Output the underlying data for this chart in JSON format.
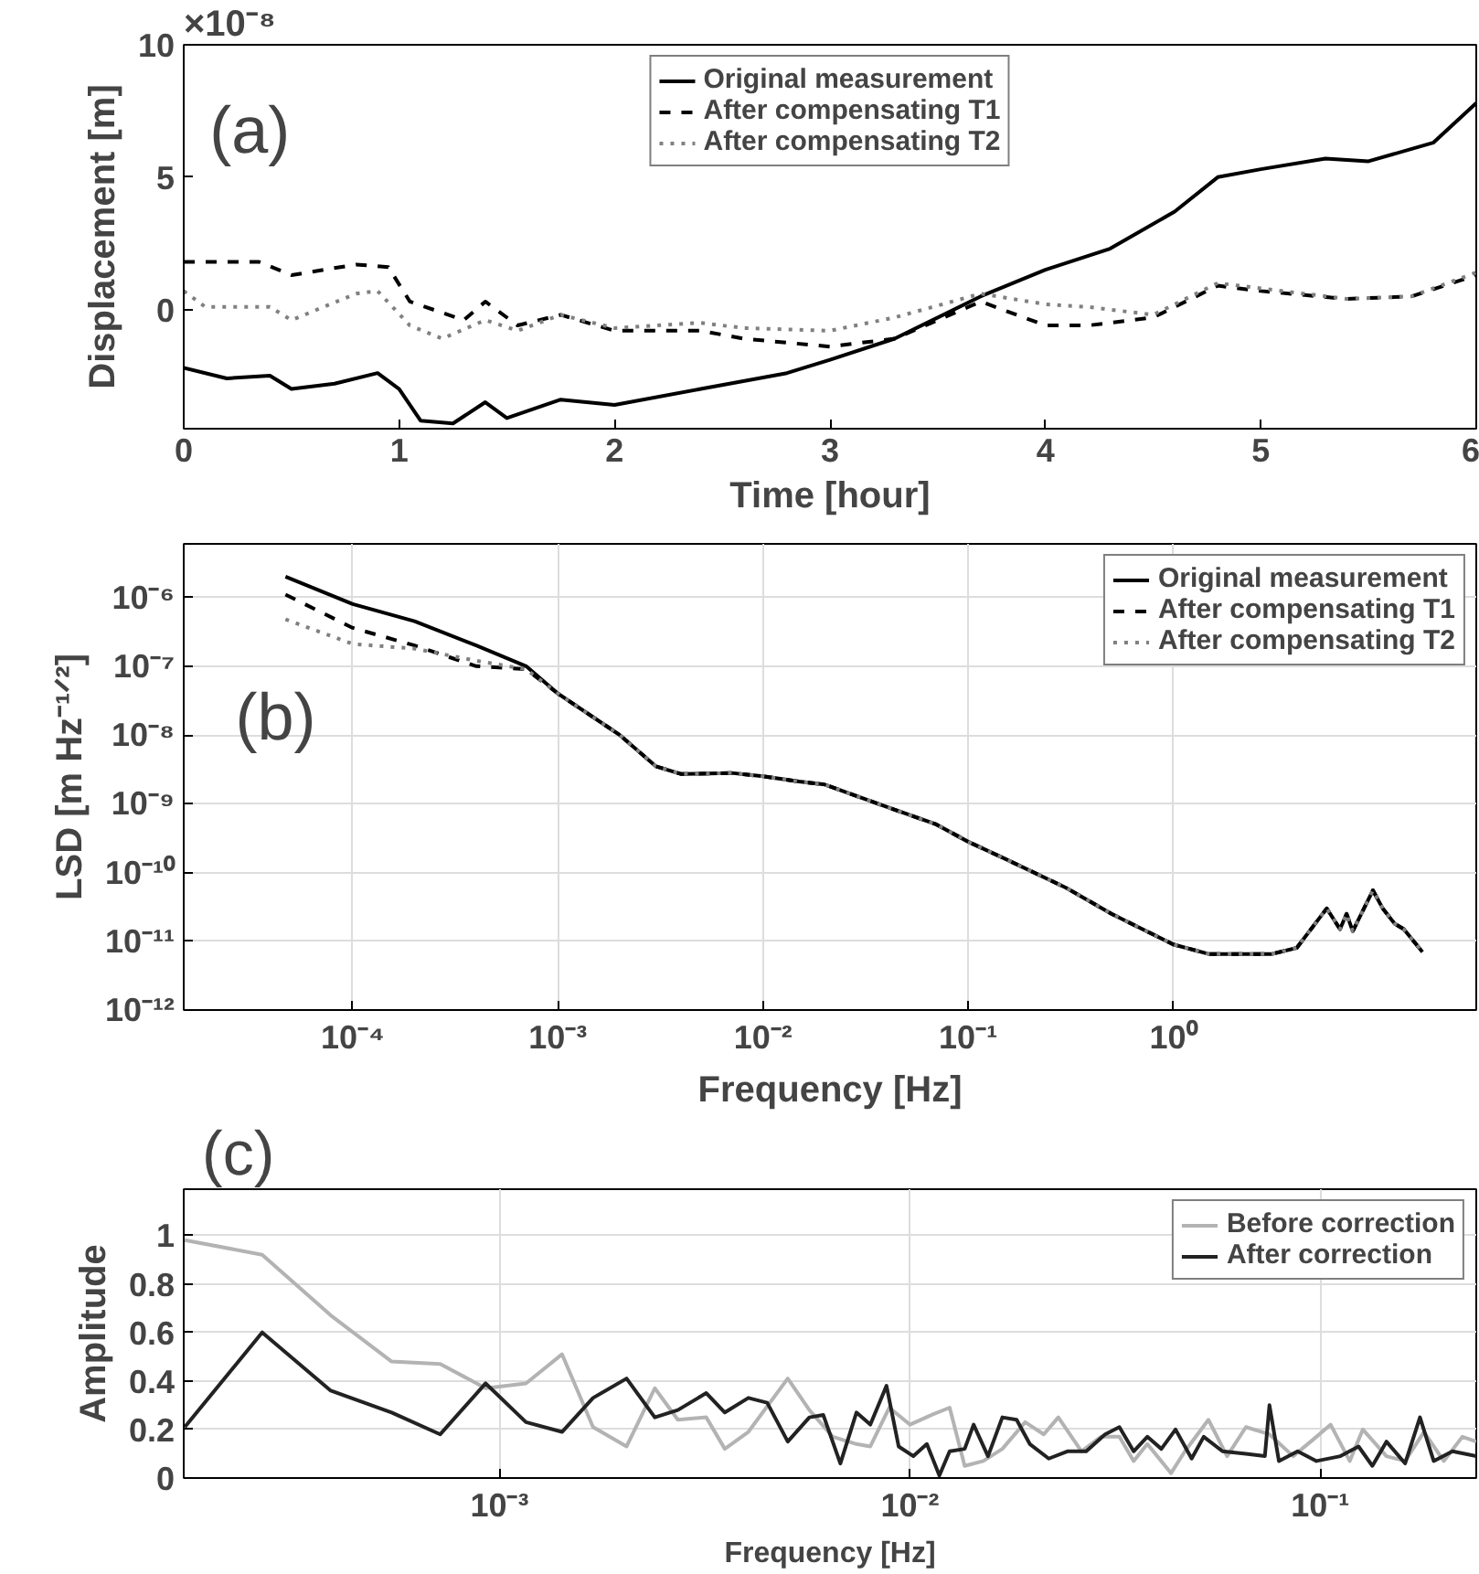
{
  "chart_data": [
    {
      "type": "line",
      "xlabel": "Time [hour]",
      "ylabel": "Displacement [m]",
      "xlim": [
        0,
        6
      ],
      "ylim": [
        -4.5,
        10
      ],
      "xticks": [
        0,
        1,
        2,
        3,
        4,
        5,
        6
      ],
      "yticks": [
        0,
        5,
        10
      ],
      "grid": false,
      "legend": "top",
      "annotations": [
        "(a)",
        "×10⁻⁸"
      ],
      "series": [
        {
          "name": "Original measurement",
          "color": "#000000",
          "line_style": "solid",
          "x": [
            0,
            0.2,
            0.4,
            0.5,
            0.7,
            0.9,
            1.0,
            1.1,
            1.25,
            1.4,
            1.5,
            1.75,
            2.0,
            2.4,
            2.8,
            3.0,
            3.3,
            3.7,
            4.0,
            4.3,
            4.6,
            4.8,
            5.0,
            5.3,
            5.5,
            5.8,
            6.0
          ],
          "values": [
            -2.2,
            -2.6,
            -2.5,
            -3.0,
            -2.8,
            -2.4,
            -3.0,
            -4.2,
            -4.3,
            -3.5,
            -4.1,
            -3.4,
            -3.6,
            -3.0,
            -2.4,
            -1.9,
            -1.1,
            0.5,
            1.5,
            2.3,
            3.7,
            5.0,
            5.3,
            5.7,
            5.6,
            6.3,
            7.8
          ]
        },
        {
          "name": "After compensating T1",
          "color": "#000000",
          "line_style": "dashed",
          "x": [
            0,
            0.35,
            0.5,
            0.8,
            0.95,
            1.05,
            1.3,
            1.4,
            1.55,
            1.75,
            2.0,
            2.4,
            2.6,
            3.0,
            3.3,
            3.7,
            4.0,
            4.2,
            4.5,
            4.8,
            5.0,
            5.4,
            5.7,
            6.0
          ],
          "values": [
            1.8,
            1.8,
            1.3,
            1.7,
            1.6,
            0.3,
            -0.4,
            0.3,
            -0.6,
            -0.2,
            -0.8,
            -0.8,
            -1.1,
            -1.4,
            -1.1,
            0.3,
            -0.6,
            -0.6,
            -0.3,
            0.9,
            0.7,
            0.4,
            0.5,
            1.3
          ]
        },
        {
          "name": "After compensating T2",
          "color": "#808080",
          "line_style": "dotted",
          "x": [
            0,
            0.1,
            0.4,
            0.5,
            0.8,
            0.9,
            1.05,
            1.2,
            1.4,
            1.55,
            1.75,
            2.0,
            2.4,
            2.6,
            3.0,
            3.3,
            3.7,
            4.0,
            4.2,
            4.5,
            4.8,
            5.0,
            5.4,
            5.7,
            6.0
          ],
          "values": [
            0.7,
            0.1,
            0.1,
            -0.4,
            0.6,
            0.7,
            -0.6,
            -1.1,
            -0.4,
            -0.8,
            -0.2,
            -0.7,
            -0.5,
            -0.7,
            -0.8,
            -0.3,
            0.6,
            0.2,
            0.1,
            -0.2,
            1.0,
            0.8,
            0.4,
            0.5,
            1.4
          ]
        }
      ]
    },
    {
      "type": "line",
      "xlabel": "Frequency [Hz]",
      "ylabel": "LSD [m Hz⁻¹ᐟ²]",
      "log": "xy",
      "xlim": [
        1.5e-05,
        30
      ],
      "ylim": [
        1e-12,
        6e-06
      ],
      "xticks": [
        {
          "value": 0.0001,
          "label": "10⁻⁴"
        },
        {
          "value": 0.001,
          "label": "10⁻³"
        },
        {
          "value": 0.01,
          "label": "10⁻²"
        },
        {
          "value": 0.1,
          "label": "10⁻¹"
        },
        {
          "value": 1,
          "label": "10⁰"
        }
      ],
      "yticks": [
        {
          "value": 1e-12,
          "label": "10⁻¹²"
        },
        {
          "value": 1e-11,
          "label": "10⁻¹¹"
        },
        {
          "value": 1e-10,
          "label": "10⁻¹⁰"
        },
        {
          "value": 1e-09,
          "label": "10⁻⁹"
        },
        {
          "value": 1e-08,
          "label": "10⁻⁸"
        },
        {
          "value": 1e-07,
          "label": "10⁻⁷"
        },
        {
          "value": 1e-06,
          "label": "10⁻⁶"
        }
      ],
      "grid": true,
      "legend": "top right",
      "annotations": [
        "(b)"
      ],
      "series": [
        {
          "name": "Original measurement",
          "color": "#000000",
          "line_style": "solid",
          "x": [
            4.7e-05,
            0.0001,
            0.0002,
            0.0004,
            0.0007,
            0.001,
            0.002,
            0.003,
            0.004,
            0.007,
            0.01,
            0.015,
            0.02,
            0.04,
            0.07,
            0.1,
            0.15,
            0.3,
            0.5,
            1,
            1.5,
            3,
            4,
            5.6,
            6.5,
            7,
            7.5,
            9.4,
            10.5,
            12,
            13.3,
            16.4
          ],
          "values": [
            2e-06,
            8e-07,
            4.5e-07,
            2e-07,
            1e-07,
            4e-08,
            1e-08,
            3.5e-09,
            2.7e-09,
            2.8e-09,
            2.5e-09,
            2.1e-09,
            1.9e-09,
            9e-10,
            5e-10,
            2.8e-10,
            1.6e-10,
            6e-11,
            2.5e-11,
            9e-12,
            6.5e-12,
            6.5e-12,
            8e-12,
            3e-11,
            1.5e-11,
            2.5e-11,
            1.4e-11,
            5.5e-11,
            3e-11,
            1.8e-11,
            1.5e-11,
            7e-12
          ]
        },
        {
          "name": "After compensating T1",
          "color": "#000000",
          "line_style": "dashed",
          "x": [
            4.7e-05,
            0.0001,
            0.0002,
            0.0004,
            0.0007,
            0.001,
            0.002,
            0.003,
            0.004,
            0.007,
            0.01,
            0.015,
            0.02,
            0.04,
            0.07,
            0.1,
            0.15,
            0.3,
            0.5,
            1,
            1.5,
            3,
            4,
            5.6,
            6.5,
            7,
            7.5,
            9.4,
            10.5,
            12,
            13.3,
            16.4
          ],
          "values": [
            1.1e-06,
            3.6e-07,
            2e-07,
            1e-07,
            9e-08,
            4e-08,
            1e-08,
            3.5e-09,
            2.7e-09,
            2.8e-09,
            2.5e-09,
            2.1e-09,
            1.9e-09,
            9e-10,
            5e-10,
            2.8e-10,
            1.6e-10,
            6e-11,
            2.5e-11,
            9e-12,
            6.5e-12,
            6.5e-12,
            8e-12,
            3e-11,
            1.5e-11,
            2.5e-11,
            1.4e-11,
            5.5e-11,
            3e-11,
            1.8e-11,
            1.5e-11,
            7e-12
          ]
        },
        {
          "name": "After compensating T2",
          "color": "#808080",
          "line_style": "dotted",
          "x": [
            4.7e-05,
            0.0001,
            0.0002,
            0.0004,
            0.0007,
            0.001,
            0.002,
            0.003,
            0.004,
            0.007,
            0.01,
            0.015,
            0.02,
            0.04,
            0.07,
            0.1,
            0.15,
            0.3,
            0.5,
            1,
            1.5,
            3,
            4,
            5.6,
            6.5,
            7,
            7.5,
            9.4,
            10.5,
            12,
            13.3,
            16.4
          ],
          "values": [
            4.8e-07,
            2.1e-07,
            1.8e-07,
            1.2e-07,
            9e-08,
            4e-08,
            1e-08,
            3.5e-09,
            2.7e-09,
            2.8e-09,
            2.5e-09,
            2.1e-09,
            1.9e-09,
            9e-10,
            5e-10,
            2.8e-10,
            1.6e-10,
            6e-11,
            2.5e-11,
            9e-12,
            6.5e-12,
            6.5e-12,
            8e-12,
            3e-11,
            1.5e-11,
            2.5e-11,
            1.4e-11,
            5.5e-11,
            3e-11,
            1.8e-11,
            1.5e-11,
            7e-12
          ]
        }
      ]
    },
    {
      "type": "line",
      "xlabel": "Frequency [Hz]",
      "ylabel": "Amplitude",
      "log": "x",
      "xlim": [
        0.00017,
        0.24
      ],
      "ylim": [
        0,
        1.19
      ],
      "xticks": [
        {
          "value": 0.001,
          "label": "10⁻³"
        },
        {
          "value": 0.01,
          "label": "10⁻²"
        },
        {
          "value": 0.1,
          "label": "10⁻¹"
        }
      ],
      "yticks": [
        0,
        0.2,
        0.4,
        0.6,
        0.8,
        1
      ],
      "grid": true,
      "legend": "top right",
      "annotations": [
        "(c)"
      ],
      "series": [
        {
          "name": "Before correction",
          "color": "#b3b3b3",
          "line_style": "solid",
          "x": [
            0.000171,
            0.000264,
            0.000388,
            0.000546,
            0.000717,
            0.000925,
            0.00116,
            0.00142,
            0.00169,
            0.00204,
            0.00239,
            0.00272,
            0.00319,
            0.00354,
            0.00404,
            0.00504,
            0.00569,
            0.00649,
            0.00741,
            0.00801,
            0.00891,
            0.01,
            0.0113,
            0.0125,
            0.0136,
            0.0151,
            0.0168,
            0.0191,
            0.0212,
            0.023,
            0.0262,
            0.0292,
            0.0324,
            0.0351,
            0.0379,
            0.0433,
            0.0468,
            0.0534,
            0.0593,
            0.0659,
            0.0752,
            0.0859,
            0.0979,
            0.106,
            0.118,
            0.127,
            0.145,
            0.161,
            0.179,
            0.2,
            0.222,
            0.24
          ],
          "values": [
            0.98,
            0.92,
            0.67,
            0.48,
            0.47,
            0.37,
            0.39,
            0.51,
            0.21,
            0.13,
            0.37,
            0.24,
            0.25,
            0.12,
            0.19,
            0.41,
            0.28,
            0.17,
            0.14,
            0.13,
            0.29,
            0.22,
            0.26,
            0.29,
            0.05,
            0.07,
            0.12,
            0.23,
            0.18,
            0.25,
            0.11,
            0.17,
            0.17,
            0.07,
            0.14,
            0.02,
            0.11,
            0.24,
            0.09,
            0.21,
            0.18,
            0.09,
            0.17,
            0.22,
            0.07,
            0.2,
            0.09,
            0.07,
            0.19,
            0.07,
            0.17,
            0.15
          ]
        },
        {
          "name": "After correction",
          "color": "#222222",
          "line_style": "solid",
          "x": [
            0.000171,
            0.000264,
            0.000388,
            0.000546,
            0.000717,
            0.000925,
            0.00116,
            0.00142,
            0.00169,
            0.00204,
            0.00239,
            0.00272,
            0.00319,
            0.00354,
            0.00404,
            0.00449,
            0.00504,
            0.00569,
            0.00615,
            0.00677,
            0.00741,
            0.00801,
            0.00877,
            0.00939,
            0.0102,
            0.011,
            0.0118,
            0.0125,
            0.0136,
            0.0143,
            0.0155,
            0.0168,
            0.0182,
            0.0196,
            0.0218,
            0.0242,
            0.0269,
            0.0299,
            0.0324,
            0.0351,
            0.0379,
            0.041,
            0.0444,
            0.0486,
            0.052,
            0.0578,
            0.0659,
            0.0733,
            0.0752,
            0.0793,
            0.0881,
            0.0979,
            0.112,
            0.124,
            0.134,
            0.145,
            0.161,
            0.175,
            0.189,
            0.21,
            0.24
          ],
          "values": [
            0.21,
            0.6,
            0.36,
            0.27,
            0.18,
            0.39,
            0.23,
            0.19,
            0.33,
            0.41,
            0.25,
            0.28,
            0.35,
            0.27,
            0.33,
            0.31,
            0.15,
            0.25,
            0.26,
            0.06,
            0.27,
            0.22,
            0.38,
            0.13,
            0.09,
            0.14,
            0.01,
            0.11,
            0.12,
            0.22,
            0.09,
            0.25,
            0.24,
            0.14,
            0.08,
            0.11,
            0.11,
            0.18,
            0.21,
            0.11,
            0.17,
            0.12,
            0.2,
            0.08,
            0.17,
            0.11,
            0.1,
            0.09,
            0.3,
            0.07,
            0.11,
            0.07,
            0.09,
            0.13,
            0.05,
            0.15,
            0.06,
            0.25,
            0.07,
            0.11,
            0.09
          ]
        }
      ]
    }
  ]
}
